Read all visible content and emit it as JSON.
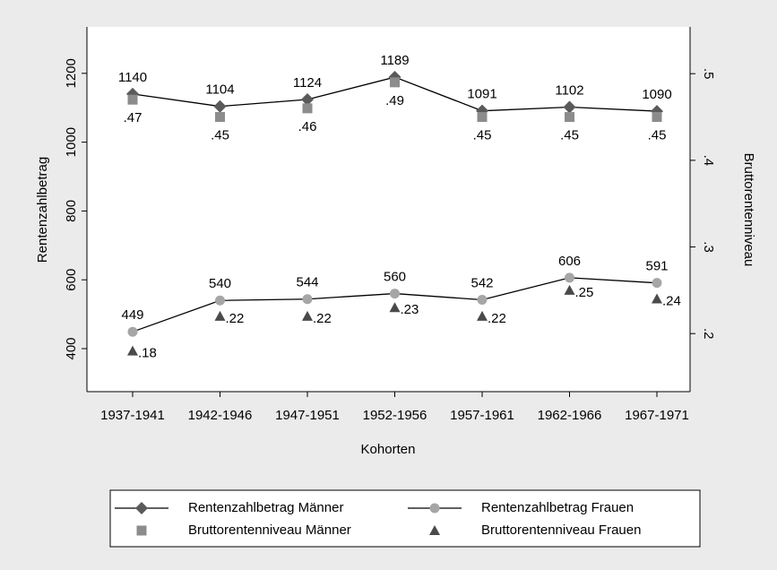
{
  "chart_data": {
    "type": "line",
    "categories": [
      "1937-1941",
      "1942-1946",
      "1947-1951",
      "1952-1956",
      "1957-1961",
      "1962-1966",
      "1967-1971"
    ],
    "xlabel": "Kohorten",
    "ylabel": "Rentenzahlbetrag",
    "y2label": "Bruttorentenniveau",
    "ylim": [
      275,
      1335
    ],
    "yticks": [
      400,
      600,
      800,
      1000,
      1200
    ],
    "y2lim": [
      0.133,
      0.554
    ],
    "y2ticks": [
      {
        "value": 0.2,
        "label": ".2"
      },
      {
        "value": 0.3,
        "label": ".3"
      },
      {
        "value": 0.4,
        "label": ".4"
      },
      {
        "value": 0.5,
        "label": ".5"
      }
    ],
    "grid": false,
    "legend": "bottom",
    "series": [
      {
        "name": "Rentenzahlbetrag Männer",
        "color": "#5a5a5a",
        "line_color": "#000000",
        "marker": "diamond",
        "axis": "y",
        "values": [
          1140,
          1104,
          1124,
          1189,
          1091,
          1102,
          1090
        ]
      },
      {
        "name": "Rentenzahlbetrag Frauen",
        "color": "#a6a6a6",
        "line_color": "#000000",
        "marker": "circle",
        "axis": "y",
        "values": [
          449,
          540,
          544,
          560,
          542,
          606,
          591
        ]
      },
      {
        "name": "Bruttorentenniveau Männer",
        "color": "#8c8c8c",
        "line_color": null,
        "marker": "square",
        "axis": "y2",
        "values": [
          0.47,
          0.45,
          0.46,
          0.49,
          0.45,
          0.45,
          0.45
        ],
        "value_labels": [
          ".47",
          ".45",
          ".46",
          ".49",
          ".45",
          ".45",
          ".45"
        ]
      },
      {
        "name": "Bruttorentenniveau Frauen",
        "color": "#4a4a4a",
        "line_color": null,
        "marker": "triangle",
        "axis": "y2",
        "values": [
          0.18,
          0.22,
          0.22,
          0.23,
          0.22,
          0.25,
          0.24
        ],
        "value_labels": [
          ".18",
          ".22",
          ".22",
          ".23",
          ".22",
          ".25",
          ".24"
        ]
      }
    ]
  }
}
